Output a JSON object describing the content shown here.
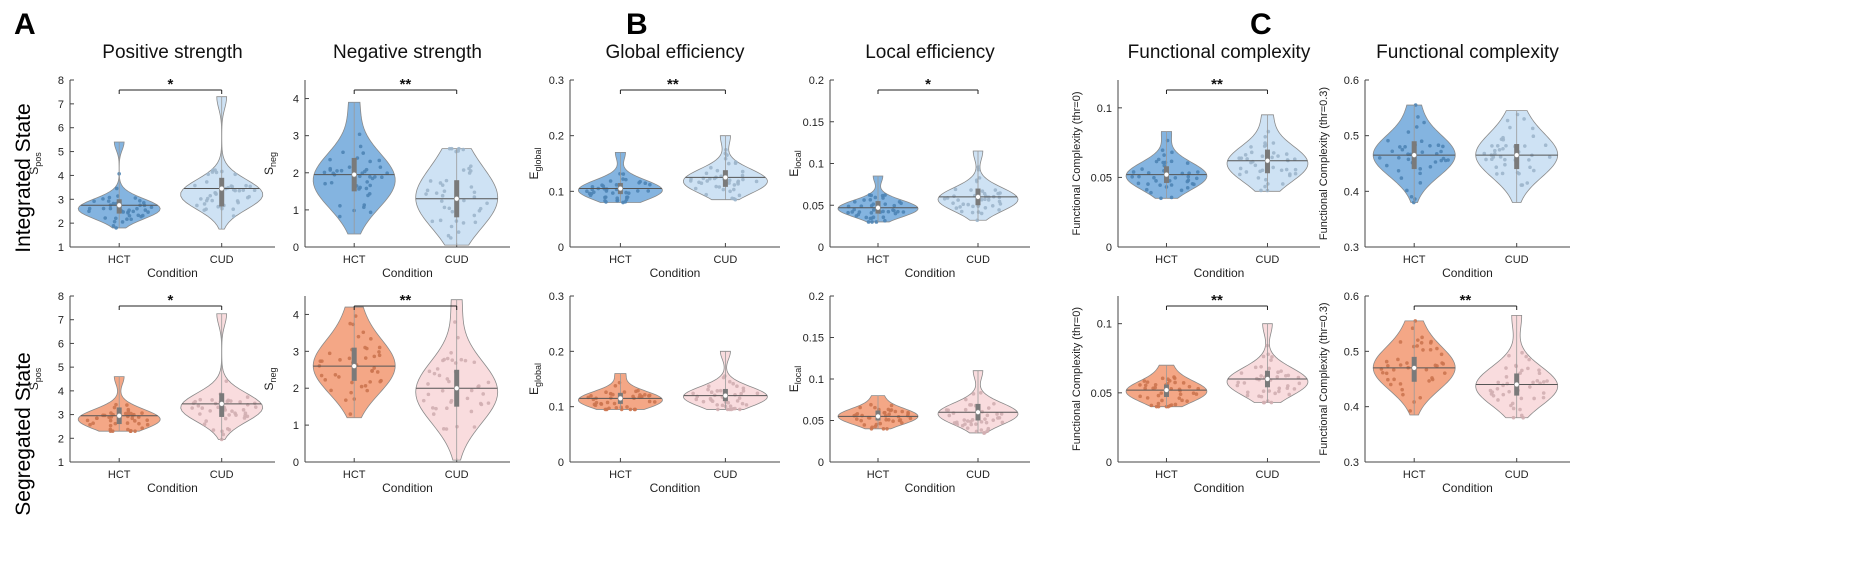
{
  "panel_letters": [
    "A",
    "B",
    "C"
  ],
  "row_labels": [
    "Integrated State",
    "Segregated State"
  ],
  "colors": {
    "hct_integrated": "#5b9bd5",
    "cud_integrated": "#b9d6f0",
    "hct_segregated": "#f08a5d",
    "cud_segregated": "#f6cdd0",
    "axis": "#444444",
    "sig_bar": "#222222",
    "median": "#555555",
    "iqr": "#7a7a7a"
  },
  "chart_data": [
    {
      "id": "A-int-pos",
      "row": 0,
      "col": 0,
      "type": "violin",
      "title": "Positive strength",
      "ylabel_main": "S",
      "ylabel_sub": "pos",
      "xlabel": "Condition",
      "categories": [
        "HCT",
        "CUD"
      ],
      "ylim": [
        1,
        8
      ],
      "yticks": [
        1,
        2,
        3,
        4,
        5,
        6,
        7,
        8
      ],
      "group": "integrated",
      "significance": "*",
      "violins": [
        {
          "median": 2.75,
          "min": 1.8,
          "max": 5.4,
          "q1": 2.4,
          "q3": 3.0,
          "mode": 2.6,
          "spread": 0.42
        },
        {
          "median": 3.45,
          "min": 1.75,
          "max": 7.3,
          "q1": 2.7,
          "q3": 3.9,
          "mode": 3.2,
          "spread": 0.62
        }
      ]
    },
    {
      "id": "A-int-neg",
      "row": 0,
      "col": 1,
      "type": "violin",
      "title": "Negative strength",
      "ylabel_main": "S",
      "ylabel_sub": "neg",
      "xlabel": "Condition",
      "categories": [
        "HCT",
        "CUD"
      ],
      "ylim": [
        0,
        4.5
      ],
      "yticks": [
        0,
        1,
        2,
        3,
        4
      ],
      "group": "integrated",
      "significance": "**",
      "violins": [
        {
          "median": 1.95,
          "min": 0.35,
          "max": 3.9,
          "q1": 1.5,
          "q3": 2.4,
          "mode": 1.8,
          "spread": 0.75
        },
        {
          "median": 1.3,
          "min": 0.05,
          "max": 2.65,
          "q1": 0.8,
          "q3": 1.8,
          "mode": 1.3,
          "spread": 0.8
        }
      ]
    },
    {
      "id": "B-int-glob",
      "row": 0,
      "col": 2,
      "type": "violin",
      "title": "Global efficiency",
      "ylabel_main": "E",
      "ylabel_sub": "global",
      "xlabel": "Condition",
      "categories": [
        "HCT",
        "CUD"
      ],
      "ylim": [
        0,
        0.3
      ],
      "yticks": [
        0,
        0.1,
        0.2,
        0.3
      ],
      "group": "integrated",
      "significance": "**",
      "violins": [
        {
          "median": 0.105,
          "min": 0.08,
          "max": 0.17,
          "q1": 0.095,
          "q3": 0.115,
          "mode": 0.102,
          "spread": 0.018
        },
        {
          "median": 0.125,
          "min": 0.085,
          "max": 0.2,
          "q1": 0.108,
          "q3": 0.138,
          "mode": 0.118,
          "spread": 0.022
        }
      ]
    },
    {
      "id": "B-int-loc",
      "row": 0,
      "col": 3,
      "type": "violin",
      "title": "Local efficiency",
      "ylabel_main": "E",
      "ylabel_sub": "local",
      "xlabel": "Condition",
      "categories": [
        "HCT",
        "CUD"
      ],
      "ylim": [
        0,
        0.2
      ],
      "yticks": [
        0,
        0.05,
        0.1,
        0.15,
        0.2
      ],
      "group": "integrated",
      "significance": "*",
      "violins": [
        {
          "median": 0.047,
          "min": 0.03,
          "max": 0.085,
          "q1": 0.04,
          "q3": 0.055,
          "mode": 0.046,
          "spread": 0.01
        },
        {
          "median": 0.06,
          "min": 0.032,
          "max": 0.115,
          "q1": 0.05,
          "q3": 0.07,
          "mode": 0.057,
          "spread": 0.014
        }
      ]
    },
    {
      "id": "C-int-fc0",
      "row": 0,
      "col": 4,
      "type": "violin",
      "title": "Functional complexity",
      "ylabel_full": "Functional Complexity (thr=0)",
      "xlabel": "Condition",
      "categories": [
        "HCT",
        "CUD"
      ],
      "ylim": [
        0,
        0.12
      ],
      "yticks": [
        0,
        0.05,
        0.1
      ],
      "group": "integrated",
      "significance": "**",
      "violins": [
        {
          "median": 0.052,
          "min": 0.035,
          "max": 0.083,
          "q1": 0.046,
          "q3": 0.058,
          "mode": 0.051,
          "spread": 0.01
        },
        {
          "median": 0.062,
          "min": 0.04,
          "max": 0.095,
          "q1": 0.053,
          "q3": 0.07,
          "mode": 0.06,
          "spread": 0.013
        }
      ]
    },
    {
      "id": "C-int-fc03",
      "row": 0,
      "col": 5,
      "type": "violin",
      "title": "Functional complexity",
      "ylabel_full": "Functional Complexity (thr=0.3)",
      "xlabel": "Condition",
      "categories": [
        "HCT",
        "CUD"
      ],
      "ylim": [
        0.3,
        0.6
      ],
      "yticks": [
        0.3,
        0.4,
        0.5,
        0.6
      ],
      "group": "integrated",
      "significance": "",
      "violins": [
        {
          "median": 0.465,
          "min": 0.38,
          "max": 0.555,
          "q1": 0.44,
          "q3": 0.49,
          "mode": 0.465,
          "spread": 0.038
        },
        {
          "median": 0.465,
          "min": 0.38,
          "max": 0.545,
          "q1": 0.44,
          "q3": 0.485,
          "mode": 0.465,
          "spread": 0.04
        }
      ]
    },
    {
      "id": "A-seg-pos",
      "row": 1,
      "col": 0,
      "type": "violin",
      "title": "",
      "ylabel_main": "S",
      "ylabel_sub": "pos",
      "xlabel": "Condition",
      "categories": [
        "HCT",
        "CUD"
      ],
      "ylim": [
        1,
        8
      ],
      "yticks": [
        1,
        2,
        3,
        4,
        5,
        6,
        7,
        8
      ],
      "group": "segregated",
      "significance": "*",
      "violins": [
        {
          "median": 2.95,
          "min": 2.3,
          "max": 4.6,
          "q1": 2.6,
          "q3": 3.3,
          "mode": 2.8,
          "spread": 0.42
        },
        {
          "median": 3.45,
          "min": 1.95,
          "max": 7.25,
          "q1": 2.9,
          "q3": 3.9,
          "mode": 3.3,
          "spread": 0.6
        }
      ]
    },
    {
      "id": "A-seg-neg",
      "row": 1,
      "col": 1,
      "type": "violin",
      "title": "",
      "ylabel_main": "S",
      "ylabel_sub": "neg",
      "xlabel": "Condition",
      "categories": [
        "HCT",
        "CUD"
      ],
      "ylim": [
        0,
        4.5
      ],
      "yticks": [
        0,
        1,
        2,
        3,
        4
      ],
      "group": "segregated",
      "significance": "**",
      "violins": [
        {
          "median": 2.6,
          "min": 1.2,
          "max": 4.2,
          "q1": 2.2,
          "q3": 3.1,
          "mode": 2.6,
          "spread": 0.75
        },
        {
          "median": 2.0,
          "min": 0.05,
          "max": 4.4,
          "q1": 1.5,
          "q3": 2.5,
          "mode": 1.9,
          "spread": 0.85
        }
      ]
    },
    {
      "id": "B-seg-glob",
      "row": 1,
      "col": 2,
      "type": "violin",
      "title": "",
      "ylabel_main": "E",
      "ylabel_sub": "global",
      "xlabel": "Condition",
      "categories": [
        "HCT",
        "CUD"
      ],
      "ylim": [
        0,
        0.3
      ],
      "yticks": [
        0,
        0.1,
        0.2,
        0.3
      ],
      "group": "segregated",
      "significance": "",
      "violins": [
        {
          "median": 0.115,
          "min": 0.095,
          "max": 0.16,
          "q1": 0.105,
          "q3": 0.125,
          "mode": 0.112,
          "spread": 0.016
        },
        {
          "median": 0.12,
          "min": 0.095,
          "max": 0.2,
          "q1": 0.11,
          "q3": 0.132,
          "mode": 0.118,
          "spread": 0.018
        }
      ]
    },
    {
      "id": "B-seg-loc",
      "row": 1,
      "col": 3,
      "type": "violin",
      "title": "",
      "ylabel_main": "E",
      "ylabel_sub": "local",
      "xlabel": "Condition",
      "categories": [
        "HCT",
        "CUD"
      ],
      "ylim": [
        0,
        0.2
      ],
      "yticks": [
        0,
        0.05,
        0.1,
        0.15,
        0.2
      ],
      "group": "segregated",
      "significance": "",
      "violins": [
        {
          "median": 0.055,
          "min": 0.04,
          "max": 0.08,
          "q1": 0.05,
          "q3": 0.062,
          "mode": 0.055,
          "spread": 0.01
        },
        {
          "median": 0.06,
          "min": 0.035,
          "max": 0.11,
          "q1": 0.05,
          "q3": 0.07,
          "mode": 0.058,
          "spread": 0.013
        }
      ]
    },
    {
      "id": "C-seg-fc0",
      "row": 1,
      "col": 4,
      "type": "violin",
      "title": "",
      "ylabel_full": "Functional Complexity (thr=0)",
      "xlabel": "Condition",
      "categories": [
        "HCT",
        "CUD"
      ],
      "ylim": [
        0,
        0.12
      ],
      "yticks": [
        0,
        0.05,
        0.1
      ],
      "group": "segregated",
      "significance": "**",
      "violins": [
        {
          "median": 0.052,
          "min": 0.04,
          "max": 0.07,
          "q1": 0.047,
          "q3": 0.056,
          "mode": 0.051,
          "spread": 0.008
        },
        {
          "median": 0.06,
          "min": 0.043,
          "max": 0.1,
          "q1": 0.054,
          "q3": 0.066,
          "mode": 0.058,
          "spread": 0.01
        }
      ]
    },
    {
      "id": "C-seg-fc03",
      "row": 1,
      "col": 5,
      "type": "violin",
      "title": "",
      "ylabel_full": "Functional Complexity (thr=0.3)",
      "xlabel": "Condition",
      "categories": [
        "HCT",
        "CUD"
      ],
      "ylim": [
        0.3,
        0.6
      ],
      "yticks": [
        0.3,
        0.4,
        0.5,
        0.6
      ],
      "group": "segregated",
      "significance": "**",
      "violins": [
        {
          "median": 0.47,
          "min": 0.385,
          "max": 0.555,
          "q1": 0.445,
          "q3": 0.49,
          "mode": 0.47,
          "spread": 0.04
        },
        {
          "median": 0.44,
          "min": 0.38,
          "max": 0.565,
          "q1": 0.42,
          "q3": 0.46,
          "mode": 0.437,
          "spread": 0.035
        }
      ]
    }
  ]
}
